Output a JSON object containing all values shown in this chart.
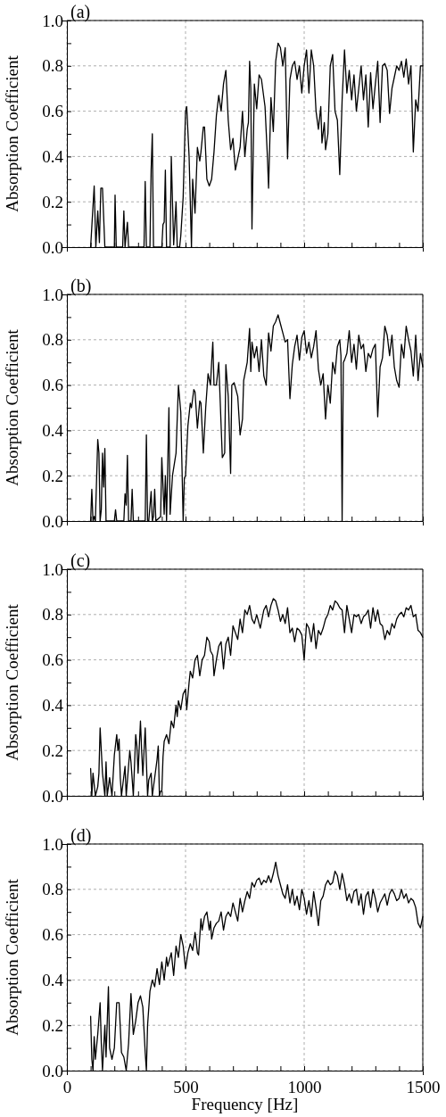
{
  "chart_data": [
    {
      "type": "line",
      "title": "(a)",
      "ylabel": "Absorption Coefficient",
      "xlim": [
        0,
        1500
      ],
      "ylim": [
        0,
        1
      ],
      "xticks": [
        0,
        {
          "value": 100,
          "label": null
        },
        {
          "value": 200,
          "label": null
        },
        {
          "value": 300,
          "label": null
        },
        {
          "value": 400,
          "label": null
        },
        500,
        {
          "value": 600,
          "label": null
        },
        {
          "value": 700,
          "label": null
        },
        {
          "value": 800,
          "label": null
        },
        {
          "value": 900,
          "label": null
        },
        1000,
        {
          "value": 1100,
          "label": null
        },
        {
          "value": 1200,
          "label": null
        },
        {
          "value": 1300,
          "label": null
        },
        {
          "value": 1400,
          "label": null
        },
        1500
      ],
      "yticks": [
        {
          "value": 0,
          "label": "0.0"
        },
        {
          "value": 0.1,
          "label": null
        },
        {
          "value": 0.2,
          "label": "0.2"
        },
        {
          "value": 0.3,
          "label": null
        },
        {
          "value": 0.4,
          "label": "0.4"
        },
        {
          "value": 0.5,
          "label": null
        },
        {
          "value": 0.6,
          "label": "0.6"
        },
        {
          "value": 0.7,
          "label": null
        },
        {
          "value": 0.8,
          "label": "0.8"
        },
        {
          "value": 0.9,
          "label": null
        },
        {
          "value": 1.0,
          "label": "1.0"
        }
      ],
      "grid": true,
      "tick_labels": "y",
      "series": [
        {
          "color": "#000000",
          "x": [
            100,
            115,
            122,
            130,
            137,
            143,
            150,
            160,
            200,
            203,
            208,
            235,
            240,
            245,
            255,
            260,
            325,
            330,
            335,
            350,
            355,
            360,
            365,
            400,
            405,
            410,
            415,
            420,
            435,
            440,
            445,
            450,
            460,
            465,
            475,
            480,
            490,
            500,
            505,
            515,
            525,
            530,
            540,
            550,
            560,
            565,
            575,
            580,
            590,
            600,
            610,
            620,
            630,
            640,
            650,
            660,
            670,
            680,
            690,
            700,
            710,
            720,
            730,
            740,
            750,
            760,
            765,
            770,
            775,
            780,
            790,
            800,
            810,
            820,
            835,
            845,
            850,
            860,
            870,
            880,
            890,
            900,
            910,
            920,
            930,
            940,
            950,
            960,
            970,
            980,
            990,
            1000,
            1010,
            1020,
            1030,
            1040,
            1050,
            1060,
            1070,
            1075,
            1085,
            1090,
            1100,
            1110,
            1120,
            1130,
            1140,
            1150,
            1160,
            1170,
            1180,
            1190,
            1200,
            1210,
            1220,
            1230,
            1240,
            1250,
            1260,
            1270,
            1280,
            1290,
            1300,
            1310,
            1320,
            1330,
            1340,
            1350,
            1360,
            1370,
            1380,
            1390,
            1400,
            1410,
            1420,
            1430,
            1440,
            1450,
            1460,
            1470,
            1480,
            1490,
            1500
          ],
          "values": [
            0,
            0.27,
            0,
            0.16,
            0.02,
            0.26,
            0.26,
            0,
            0,
            0.23,
            0,
            0,
            0.16,
            0,
            0.11,
            0,
            0,
            0.29,
            0,
            0,
            0.34,
            0.5,
            0,
            0,
            0.1,
            0.11,
            0.34,
            0,
            0,
            0.4,
            0.2,
            0.01,
            0.2,
            0,
            0,
            0.05,
            0.22,
            0.6,
            0.62,
            0.4,
            0,
            0.3,
            0.15,
            0.44,
            0.38,
            0.42,
            0.53,
            0.53,
            0.3,
            0.27,
            0.3,
            0.42,
            0.58,
            0.67,
            0.6,
            0.72,
            0.78,
            0.56,
            0.43,
            0.48,
            0.34,
            0.39,
            0.44,
            0.6,
            0.4,
            0.52,
            0.55,
            0.82,
            0.7,
            0.08,
            0.72,
            0.61,
            0.76,
            0.74,
            0.62,
            0.4,
            0.26,
            0.66,
            0.51,
            0.82,
            0.9,
            0.88,
            0.8,
            0.88,
            0.39,
            0.74,
            0.8,
            0.82,
            0.74,
            0.8,
            0.68,
            0.8,
            0.87,
            0.68,
            0.87,
            0.8,
            0.6,
            0.52,
            0.62,
            0.46,
            0.55,
            0.43,
            0.5,
            0.8,
            0.85,
            0.6,
            0.56,
            0.32,
            0.65,
            0.87,
            0.68,
            0.78,
            0.65,
            0.76,
            0.6,
            0.7,
            0.8,
            0.65,
            0.76,
            0.53,
            0.77,
            0.61,
            0.72,
            0.82,
            0.55,
            0.8,
            0.81,
            0.78,
            0.59,
            0.7,
            0.75,
            0.8,
            0.78,
            0.82,
            0.75,
            0.83,
            0.72,
            0.8,
            0.42,
            0.65,
            0.6,
            0.8,
            0.8
          ]
        }
      ]
    },
    {
      "type": "line",
      "title": "(b)",
      "ylabel": "Absorption Coefficient",
      "xlim": [
        0,
        1500
      ],
      "ylim": [
        0,
        1
      ],
      "xticks": [
        0,
        {
          "value": 100,
          "label": null
        },
        {
          "value": 200,
          "label": null
        },
        {
          "value": 300,
          "label": null
        },
        {
          "value": 400,
          "label": null
        },
        500,
        {
          "value": 600,
          "label": null
        },
        {
          "value": 700,
          "label": null
        },
        {
          "value": 800,
          "label": null
        },
        {
          "value": 900,
          "label": null
        },
        1000,
        {
          "value": 1100,
          "label": null
        },
        {
          "value": 1200,
          "label": null
        },
        {
          "value": 1300,
          "label": null
        },
        {
          "value": 1400,
          "label": null
        },
        1500
      ],
      "yticks": [
        {
          "value": 0,
          "label": "0.0"
        },
        {
          "value": 0.1,
          "label": null
        },
        {
          "value": 0.2,
          "label": "0.2"
        },
        {
          "value": 0.3,
          "label": null
        },
        {
          "value": 0.4,
          "label": "0.4"
        },
        {
          "value": 0.5,
          "label": null
        },
        {
          "value": 0.6,
          "label": "0.6"
        },
        {
          "value": 0.7,
          "label": null
        },
        {
          "value": 0.8,
          "label": "0.8"
        },
        {
          "value": 0.9,
          "label": null
        },
        {
          "value": 1.0,
          "label": "1.0"
        }
      ],
      "grid": true,
      "tick_labels": "y",
      "series": [
        {
          "color": "#000000",
          "x": [
            100,
            105,
            110,
            115,
            120,
            130,
            135,
            140,
            145,
            150,
            155,
            160,
            165,
            200,
            205,
            210,
            240,
            245,
            250,
            255,
            260,
            270,
            275,
            280,
            330,
            335,
            340,
            345,
            355,
            360,
            365,
            370,
            375,
            395,
            400,
            410,
            415,
            420,
            430,
            435,
            445,
            460,
            470,
            480,
            490,
            495,
            500,
            510,
            520,
            525,
            535,
            540,
            550,
            560,
            565,
            575,
            585,
            595,
            605,
            610,
            615,
            620,
            630,
            640,
            650,
            655,
            665,
            670,
            680,
            690,
            695,
            705,
            710,
            720,
            730,
            740,
            745,
            760,
            770,
            775,
            780,
            790,
            800,
            810,
            820,
            830,
            840,
            850,
            860,
            870,
            880,
            890,
            900,
            910,
            920,
            930,
            940,
            950,
            960,
            970,
            980,
            990,
            1000,
            1010,
            1020,
            1030,
            1040,
            1050,
            1060,
            1070,
            1080,
            1090,
            1100,
            1110,
            1120,
            1130,
            1140,
            1150,
            1155,
            1160,
            1165,
            1170,
            1180,
            1190,
            1200,
            1210,
            1220,
            1230,
            1240,
            1250,
            1260,
            1270,
            1280,
            1290,
            1300,
            1310,
            1320,
            1330,
            1340,
            1350,
            1360,
            1370,
            1380,
            1390,
            1400,
            1410,
            1420,
            1430,
            1440,
            1450,
            1460,
            1470,
            1480,
            1490,
            1500
          ],
          "values": [
            0,
            0.14,
            0,
            0.02,
            0,
            0.36,
            0.3,
            0,
            0.05,
            0.3,
            0.15,
            0.32,
            0,
            0,
            0.05,
            0,
            0,
            0.12,
            0.07,
            0.29,
            0,
            0,
            0.14,
            0,
            0,
            0.38,
            0,
            0,
            0.13,
            0,
            0.02,
            0.14,
            0,
            0.02,
            0.28,
            0.03,
            0.2,
            0,
            0.5,
            0.03,
            0.2,
            0.3,
            0.6,
            0.48,
            0,
            0.19,
            0.2,
            0.42,
            0.52,
            0.5,
            0.58,
            0.57,
            0.41,
            0.53,
            0.52,
            0.3,
            0.5,
            0.65,
            0.6,
            0.7,
            0.79,
            0.6,
            0.6,
            0.7,
            0.42,
            0.28,
            0.3,
            0.69,
            0.55,
            0.21,
            0.6,
            0.61,
            0.59,
            0.55,
            0.38,
            0.45,
            0.62,
            0.7,
            0.85,
            0.66,
            0.79,
            0.72,
            0.77,
            0.66,
            0.8,
            0.64,
            0.6,
            0.83,
            0.75,
            0.86,
            0.88,
            0.91,
            0.87,
            0.83,
            0.79,
            0.8,
            0.54,
            0.69,
            0.77,
            0.82,
            0.71,
            0.81,
            0.84,
            0.74,
            0.79,
            0.72,
            0.77,
            0.84,
            0.67,
            0.6,
            0.65,
            0.45,
            0.6,
            0.52,
            0.7,
            0.65,
            0.77,
            0.8,
            0.73,
            0,
            0.7,
            0.71,
            0.74,
            0.84,
            0.7,
            0.78,
            0.67,
            0.82,
            0.76,
            0.78,
            0.66,
            0.74,
            0.72,
            0.76,
            0.78,
            0.46,
            0.68,
            0.72,
            0.86,
            0.82,
            0.73,
            0.82,
            0.68,
            0.62,
            0.59,
            0.78,
            0.72,
            0.86,
            0.8,
            0.75,
            0.64,
            0.82,
            0.62,
            0.74,
            0.68
          ]
        }
      ]
    },
    {
      "type": "line",
      "title": "(c)",
      "ylabel": "Absorption Coefficient",
      "xlim": [
        0,
        1500
      ],
      "ylim": [
        0,
        1
      ],
      "xticks": [
        0,
        {
          "value": 100,
          "label": null
        },
        {
          "value": 200,
          "label": null
        },
        {
          "value": 300,
          "label": null
        },
        {
          "value": 400,
          "label": null
        },
        500,
        {
          "value": 600,
          "label": null
        },
        {
          "value": 700,
          "label": null
        },
        {
          "value": 800,
          "label": null
        },
        {
          "value": 900,
          "label": null
        },
        1000,
        {
          "value": 1100,
          "label": null
        },
        {
          "value": 1200,
          "label": null
        },
        {
          "value": 1300,
          "label": null
        },
        {
          "value": 1400,
          "label": null
        },
        1500
      ],
      "yticks": [
        {
          "value": 0,
          "label": "0.0"
        },
        {
          "value": 0.1,
          "label": null
        },
        {
          "value": 0.2,
          "label": "0.2"
        },
        {
          "value": 0.3,
          "label": null
        },
        {
          "value": 0.4,
          "label": "0.4"
        },
        {
          "value": 0.5,
          "label": null
        },
        {
          "value": 0.6,
          "label": "0.6"
        },
        {
          "value": 0.7,
          "label": null
        },
        {
          "value": 0.8,
          "label": "0.8"
        },
        {
          "value": 0.9,
          "label": null
        },
        {
          "value": 1.0,
          "label": "1.0"
        }
      ],
      "grid": true,
      "tick_labels": "y",
      "series": [
        {
          "color": "#000000",
          "x": [
            100,
            105,
            110,
            120,
            130,
            135,
            140,
            145,
            150,
            160,
            165,
            170,
            180,
            190,
            200,
            210,
            215,
            220,
            225,
            230,
            245,
            250,
            265,
            270,
            280,
            290,
            295,
            300,
            310,
            315,
            320,
            330,
            340,
            345,
            355,
            360,
            380,
            385,
            390,
            395,
            400,
            405,
            410,
            420,
            430,
            440,
            450,
            460,
            465,
            470,
            480,
            490,
            500,
            505,
            515,
            520,
            530,
            540,
            550,
            560,
            570,
            580,
            590,
            600,
            605,
            615,
            620,
            630,
            640,
            650,
            660,
            670,
            680,
            690,
            700,
            710,
            720,
            730,
            740,
            750,
            760,
            770,
            780,
            790,
            800,
            815,
            830,
            840,
            850,
            860,
            870,
            880,
            890,
            900,
            910,
            920,
            930,
            940,
            950,
            960,
            970,
            980,
            990,
            1000,
            1010,
            1020,
            1030,
            1040,
            1050,
            1060,
            1070,
            1080,
            1090,
            1100,
            1110,
            1120,
            1130,
            1140,
            1150,
            1160,
            1170,
            1180,
            1190,
            1200,
            1210,
            1220,
            1230,
            1240,
            1250,
            1260,
            1270,
            1280,
            1290,
            1300,
            1310,
            1320,
            1330,
            1340,
            1350,
            1360,
            1370,
            1380,
            1390,
            1400,
            1410,
            1420,
            1430,
            1440,
            1450,
            1460,
            1470,
            1480,
            1490,
            1500
          ],
          "values": [
            0.12,
            0,
            0.1,
            0,
            0.04,
            0.1,
            0.3,
            0.2,
            0.1,
            0,
            0.15,
            0,
            0.08,
            0,
            0.18,
            0.27,
            0.2,
            0.25,
            0.08,
            0,
            0.13,
            0,
            0.2,
            0.15,
            0,
            0.27,
            0.22,
            0.1,
            0.33,
            0.2,
            0.09,
            0.3,
            0,
            0.07,
            0.1,
            0,
            0.16,
            0.22,
            0,
            0.02,
            0.02,
            0.17,
            0.24,
            0.27,
            0.23,
            0.33,
            0.3,
            0.4,
            0.35,
            0.42,
            0.38,
            0.45,
            0.47,
            0.38,
            0.5,
            0.55,
            0.52,
            0.6,
            0.62,
            0.53,
            0.6,
            0.62,
            0.7,
            0.68,
            0.64,
            0.62,
            0.53,
            0.6,
            0.66,
            0.68,
            0.56,
            0.67,
            0.7,
            0.62,
            0.75,
            0.72,
            0.69,
            0.78,
            0.72,
            0.82,
            0.8,
            0.84,
            0.78,
            0.76,
            0.8,
            0.74,
            0.82,
            0.84,
            0.79,
            0.84,
            0.87,
            0.86,
            0.82,
            0.77,
            0.8,
            0.76,
            0.83,
            0.72,
            0.74,
            0.68,
            0.74,
            0.73,
            0.71,
            0.6,
            0.76,
            0.74,
            0.68,
            0.76,
            0.65,
            0.73,
            0.71,
            0.74,
            0.78,
            0.8,
            0.84,
            0.82,
            0.86,
            0.85,
            0.83,
            0.82,
            0.72,
            0.84,
            0.78,
            0.72,
            0.8,
            0.79,
            0.8,
            0.76,
            0.79,
            0.8,
            0.82,
            0.74,
            0.83,
            0.77,
            0.82,
            0.76,
            0.75,
            0.69,
            0.73,
            0.71,
            0.76,
            0.74,
            0.78,
            0.8,
            0.81,
            0.79,
            0.83,
            0.82,
            0.84,
            0.79,
            0.8,
            0.73,
            0.72,
            0.7
          ]
        }
      ]
    },
    {
      "type": "line",
      "title": "(d)",
      "ylabel": "Absorption Coefficient",
      "xlabel": "Frequency [Hz]",
      "xlim": [
        0,
        1500
      ],
      "ylim": [
        0,
        1
      ],
      "xticks": [
        {
          "value": 0,
          "label": "0"
        },
        {
          "value": 100,
          "label": null
        },
        {
          "value": 200,
          "label": null
        },
        {
          "value": 300,
          "label": null
        },
        {
          "value": 400,
          "label": null
        },
        {
          "value": 500,
          "label": "500"
        },
        {
          "value": 600,
          "label": null
        },
        {
          "value": 700,
          "label": null
        },
        {
          "value": 800,
          "label": null
        },
        {
          "value": 900,
          "label": null
        },
        {
          "value": 1000,
          "label": "1000"
        },
        {
          "value": 1100,
          "label": null
        },
        {
          "value": 1200,
          "label": null
        },
        {
          "value": 1300,
          "label": null
        },
        {
          "value": 1400,
          "label": null
        },
        {
          "value": 1500,
          "label": "1500"
        }
      ],
      "yticks": [
        {
          "value": 0,
          "label": "0.0"
        },
        {
          "value": 0.1,
          "label": null
        },
        {
          "value": 0.2,
          "label": "0.2"
        },
        {
          "value": 0.3,
          "label": null
        },
        {
          "value": 0.4,
          "label": "0.4"
        },
        {
          "value": 0.5,
          "label": null
        },
        {
          "value": 0.6,
          "label": "0.6"
        },
        {
          "value": 0.7,
          "label": null
        },
        {
          "value": 0.8,
          "label": "0.8"
        },
        {
          "value": 0.9,
          "label": null
        },
        {
          "value": 1.0,
          "label": "1.0"
        }
      ],
      "grid": true,
      "series": [
        {
          "color": "#000000",
          "x": [
            100,
            105,
            110,
            115,
            120,
            130,
            140,
            145,
            150,
            160,
            165,
            175,
            180,
            190,
            200,
            210,
            220,
            230,
            240,
            250,
            260,
            270,
            280,
            290,
            300,
            310,
            320,
            330,
            335,
            340,
            350,
            360,
            370,
            380,
            390,
            400,
            410,
            420,
            425,
            440,
            450,
            460,
            470,
            480,
            490,
            495,
            500,
            510,
            520,
            530,
            540,
            545,
            550,
            555,
            565,
            570,
            580,
            590,
            600,
            605,
            610,
            620,
            630,
            640,
            650,
            660,
            670,
            680,
            690,
            700,
            710,
            720,
            730,
            740,
            750,
            760,
            770,
            780,
            790,
            800,
            810,
            820,
            830,
            840,
            850,
            860,
            870,
            880,
            890,
            900,
            910,
            920,
            930,
            940,
            950,
            960,
            970,
            980,
            990,
            1000,
            1010,
            1020,
            1030,
            1040,
            1050,
            1060,
            1070,
            1080,
            1090,
            1100,
            1110,
            1120,
            1130,
            1140,
            1150,
            1160,
            1170,
            1180,
            1190,
            1200,
            1210,
            1220,
            1230,
            1240,
            1250,
            1260,
            1270,
            1280,
            1290,
            1300,
            1310,
            1320,
            1330,
            1340,
            1350,
            1360,
            1370,
            1380,
            1390,
            1400,
            1410,
            1420,
            1430,
            1440,
            1450,
            1460,
            1470,
            1480,
            1490,
            1500
          ],
          "values": [
            0.24,
            0.05,
            0,
            0.15,
            0.05,
            0.16,
            0.3,
            0.12,
            0,
            0.2,
            0.06,
            0.37,
            0.1,
            0.05,
            0.1,
            0.3,
            0.3,
            0.08,
            0.06,
            0,
            0.12,
            0.34,
            0.16,
            0.22,
            0.3,
            0.33,
            0.28,
            0.08,
            0,
            0.2,
            0.35,
            0.4,
            0.37,
            0.45,
            0.38,
            0.48,
            0.4,
            0.5,
            0.46,
            0.52,
            0.42,
            0.55,
            0.5,
            0.6,
            0.55,
            0.5,
            0.45,
            0.52,
            0.56,
            0.53,
            0.61,
            0.57,
            0.52,
            0.51,
            0.67,
            0.62,
            0.68,
            0.7,
            0.62,
            0.66,
            0.58,
            0.63,
            0.65,
            0.66,
            0.7,
            0.62,
            0.68,
            0.7,
            0.68,
            0.74,
            0.7,
            0.66,
            0.76,
            0.7,
            0.75,
            0.79,
            0.76,
            0.83,
            0.81,
            0.84,
            0.85,
            0.82,
            0.84,
            0.83,
            0.86,
            0.83,
            0.87,
            0.92,
            0.86,
            0.82,
            0.78,
            0.76,
            0.82,
            0.74,
            0.8,
            0.73,
            0.77,
            0.71,
            0.8,
            0.76,
            0.69,
            0.75,
            0.68,
            0.79,
            0.72,
            0.64,
            0.75,
            0.77,
            0.82,
            0.84,
            0.82,
            0.83,
            0.88,
            0.86,
            0.8,
            0.87,
            0.82,
            0.75,
            0.78,
            0.74,
            0.79,
            0.8,
            0.73,
            0.78,
            0.69,
            0.77,
            0.79,
            0.72,
            0.8,
            0.76,
            0.7,
            0.74,
            0.76,
            0.78,
            0.73,
            0.78,
            0.8,
            0.78,
            0.75,
            0.76,
            0.8,
            0.76,
            0.78,
            0.74,
            0.76,
            0.75,
            0.72,
            0.65,
            0.63,
            0.68
          ]
        }
      ]
    }
  ]
}
